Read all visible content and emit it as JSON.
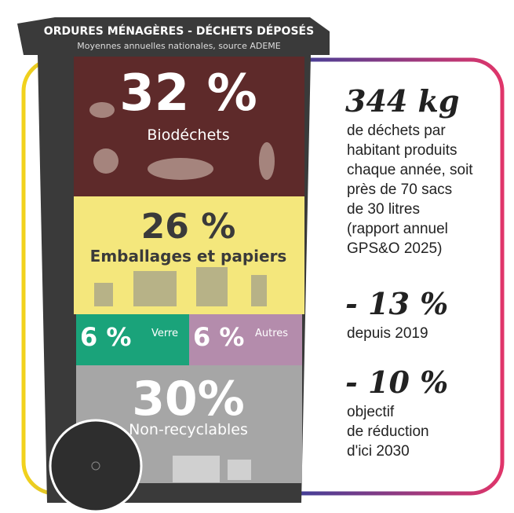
{
  "header": {
    "title": "ORDURES MÉNAGÈRES - DÉCHETS DÉPOSÉS",
    "subtitle": "Moyennes annuelles nationales, source ADEME"
  },
  "sections": [
    {
      "percent": "32 %",
      "label": "Biodéchets"
    },
    {
      "percent": "26 %",
      "label": "Emballages et papiers"
    },
    {
      "percent": "6 %",
      "label": "Verre"
    },
    {
      "percent": "6 %",
      "label": "Autres"
    },
    {
      "percent": "30%",
      "label": "Non-recyclables"
    }
  ],
  "stats": [
    {
      "value": "344 kg",
      "lines": [
        "de déchets par",
        "habitant produits",
        "chaque année, soit",
        "près de 70 sacs",
        "de 30 litres",
        "(rapport annuel",
        "GPS&O 2025)"
      ]
    },
    {
      "value": "- 13 %",
      "lines": [
        "depuis 2019"
      ]
    },
    {
      "value": "- 10 %",
      "lines": [
        "objectif",
        "de réduction",
        "d'ici 2030"
      ]
    }
  ]
}
